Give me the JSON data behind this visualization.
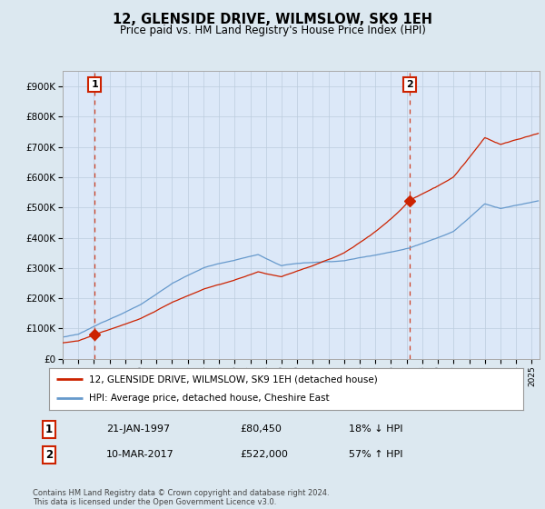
{
  "title": "12, GLENSIDE DRIVE, WILMSLOW, SK9 1EH",
  "subtitle": "Price paid vs. HM Land Registry's House Price Index (HPI)",
  "hpi_legend": "HPI: Average price, detached house, Cheshire East",
  "property_legend": "12, GLENSIDE DRIVE, WILMSLOW, SK9 1EH (detached house)",
  "sale1_date": "21-JAN-1997",
  "sale1_price": 80450,
  "sale1_label": "18% ↓ HPI",
  "sale2_date": "10-MAR-2017",
  "sale2_price": 522000,
  "sale2_label": "57% ↑ HPI",
  "sale1_year": 1997.05,
  "sale2_year": 2017.19,
  "ylim": [
    0,
    950000
  ],
  "xlim_start": 1995.0,
  "xlim_end": 2025.5,
  "hpi_color": "#6699cc",
  "property_color": "#cc2200",
  "background_color": "#dce8f0",
  "plot_bg_color": "#dce8f8",
  "footnote": "Contains HM Land Registry data © Crown copyright and database right 2024.\nThis data is licensed under the Open Government Licence v3.0.",
  "yticks": [
    0,
    100000,
    200000,
    300000,
    400000,
    500000,
    600000,
    700000,
    800000,
    900000
  ],
  "ytick_labels": [
    "£0",
    "£100K",
    "£200K",
    "£300K",
    "£400K",
    "£500K",
    "£600K",
    "£700K",
    "£800K",
    "£900K"
  ]
}
